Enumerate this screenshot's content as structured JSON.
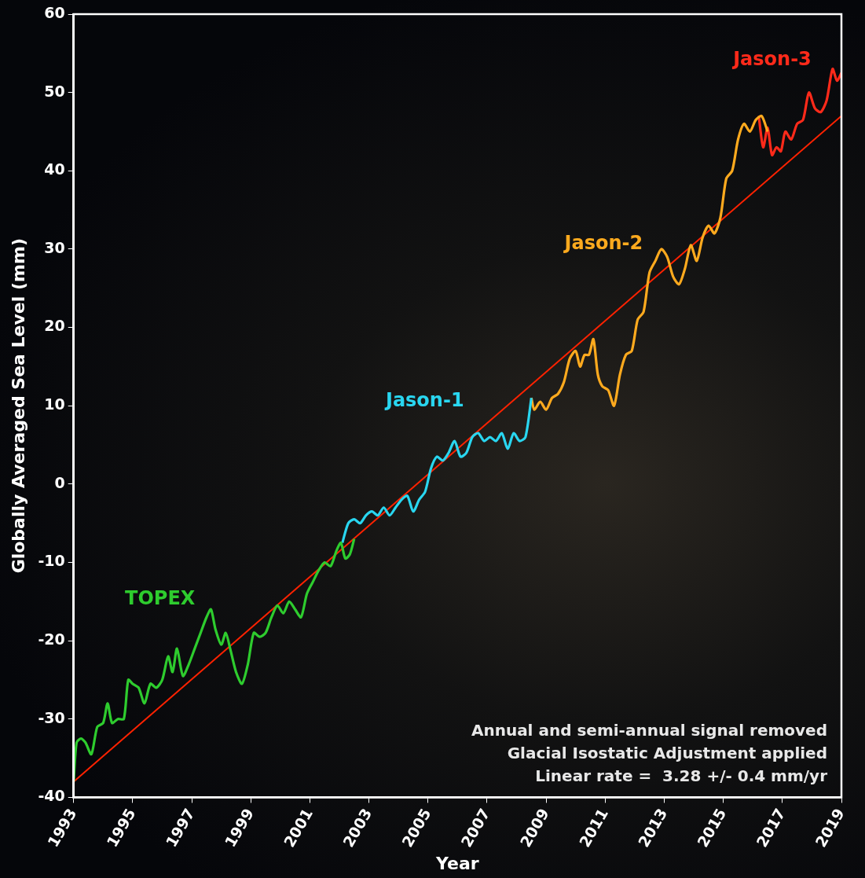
{
  "chart_data": {
    "type": "line",
    "x_label": "Year",
    "y_label": "Globally Averaged Sea Level (mm)",
    "xlim": [
      1993,
      2019
    ],
    "xticks": [
      1993,
      1995,
      1997,
      1999,
      2001,
      2003,
      2005,
      2007,
      2009,
      2011,
      2013,
      2015,
      2017,
      2019
    ],
    "ylim": [
      -40,
      60
    ],
    "yticks": [
      -40,
      -30,
      -20,
      -10,
      0,
      10,
      20,
      30,
      40,
      50,
      60
    ],
    "grid": false,
    "annotations": [
      "Annual and semi-annual signal removed",
      "Glacial Isostatic Adjustment applied",
      "Linear rate =  3.28 +/- 0.4 mm/yr"
    ],
    "series": [
      {
        "name": "TOPEX",
        "color": "#2ecc2e",
        "x": [
          1993.0,
          1993.1,
          1993.25,
          1993.4,
          1993.6,
          1993.8,
          1994.0,
          1994.15,
          1994.3,
          1994.5,
          1994.7,
          1994.85,
          1995.0,
          1995.2,
          1995.4,
          1995.6,
          1995.8,
          1996.0,
          1996.2,
          1996.35,
          1996.5,
          1996.7,
          1996.9,
          1997.1,
          1997.3,
          1997.5,
          1997.65,
          1997.8,
          1998.0,
          1998.15,
          1998.3,
          1998.5,
          1998.7,
          1998.9,
          1999.1,
          1999.3,
          1999.5,
          1999.7,
          1999.9,
          2000.1,
          2000.3,
          2000.5,
          2000.7,
          2000.9,
          2001.1,
          2001.3,
          2001.5,
          2001.7,
          2001.9,
          2002.05,
          2002.2,
          2002.35,
          2002.5
        ],
        "values": [
          -38,
          -33,
          -32.5,
          -33,
          -34.5,
          -31,
          -30.5,
          -28,
          -30.5,
          -30,
          -30,
          -25,
          -25.5,
          -26,
          -28,
          -25.5,
          -26,
          -25,
          -22,
          -24,
          -21,
          -24.5,
          -23,
          -21,
          -19,
          -17,
          -16,
          -18.5,
          -20.5,
          -19,
          -21,
          -24,
          -25.5,
          -23,
          -19,
          -19.5,
          -19,
          -17,
          -15.5,
          -16.5,
          -15,
          -16,
          -17,
          -14,
          -12.5,
          -11,
          -10,
          -10.5,
          -8.5,
          -7.5,
          -9.5,
          -9,
          -7
        ]
      },
      {
        "name": "Jason-1",
        "color": "#29d6f0",
        "x": [
          2002.1,
          2002.3,
          2002.5,
          2002.7,
          2002.9,
          2003.1,
          2003.3,
          2003.5,
          2003.7,
          2003.9,
          2004.1,
          2004.3,
          2004.5,
          2004.7,
          2004.9,
          2005.1,
          2005.3,
          2005.5,
          2005.7,
          2005.9,
          2006.1,
          2006.3,
          2006.5,
          2006.7,
          2006.9,
          2007.1,
          2007.3,
          2007.5,
          2007.7,
          2007.9,
          2008.1,
          2008.3,
          2008.5
        ],
        "values": [
          -7.5,
          -5,
          -4.5,
          -5,
          -4,
          -3.5,
          -4,
          -3,
          -4,
          -3,
          -2,
          -1.5,
          -3.5,
          -2,
          -1,
          2,
          3.5,
          3,
          4,
          5.5,
          3.5,
          4,
          6,
          6.5,
          5.5,
          6,
          5.5,
          6.5,
          4.5,
          6.5,
          5.5,
          6,
          11
        ]
      },
      {
        "name": "Jason-2",
        "color": "#ffaa1e",
        "x": [
          2008.5,
          2008.6,
          2008.8,
          2009.0,
          2009.2,
          2009.4,
          2009.6,
          2009.8,
          2010.0,
          2010.15,
          2010.3,
          2010.45,
          2010.6,
          2010.75,
          2010.9,
          2011.1,
          2011.3,
          2011.5,
          2011.7,
          2011.9,
          2012.1,
          2012.3,
          2012.5,
          2012.7,
          2012.9,
          2013.1,
          2013.3,
          2013.5,
          2013.7,
          2013.9,
          2014.1,
          2014.3,
          2014.5,
          2014.7,
          2014.9,
          2015.1,
          2015.3,
          2015.5,
          2015.7,
          2015.9,
          2016.1,
          2016.3,
          2016.5
        ],
        "values": [
          11,
          9.5,
          10.5,
          9.5,
          11,
          11.5,
          13,
          16,
          17,
          15,
          16.5,
          16.5,
          18.5,
          14,
          12.5,
          12,
          10,
          14,
          16.5,
          17,
          21,
          22,
          27,
          28.5,
          30,
          29,
          26.5,
          25.5,
          27.5,
          30.5,
          28.5,
          31.5,
          33,
          32,
          34,
          39,
          40,
          44,
          46,
          45,
          46.5,
          47,
          45
        ]
      },
      {
        "name": "Jason-3",
        "color": "#ff2a1a",
        "x": [
          2016.2,
          2016.35,
          2016.5,
          2016.65,
          2016.8,
          2016.95,
          2017.1,
          2017.3,
          2017.5,
          2017.7,
          2017.9,
          2018.1,
          2018.3,
          2018.5,
          2018.7,
          2018.85,
          2019.0
        ],
        "values": [
          47,
          43,
          45.5,
          42,
          43,
          42.5,
          45,
          44,
          46,
          46.5,
          50,
          48,
          47.5,
          49,
          53,
          51.5,
          52.5
        ]
      }
    ],
    "trend_line": {
      "x": [
        1993,
        2019
      ],
      "values": [
        -38,
        47
      ],
      "color": "#ff2200"
    }
  }
}
